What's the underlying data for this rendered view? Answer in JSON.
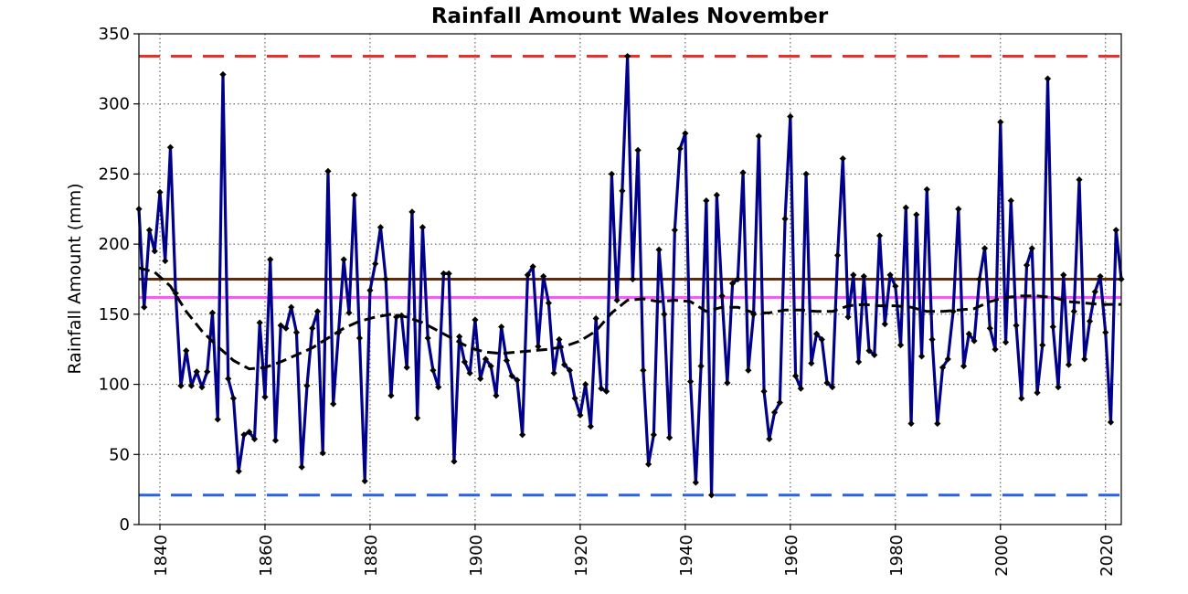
{
  "chart_data": {
    "type": "line",
    "title": "Rainfall Amount Wales November",
    "xlabel": "",
    "ylabel": "Rainfall Amount (mm)",
    "xlim": [
      1836,
      2023
    ],
    "ylim": [
      0,
      350
    ],
    "x_ticks": [
      1840,
      1860,
      1880,
      1900,
      1920,
      1940,
      1960,
      1980,
      2000,
      2020
    ],
    "y_ticks": [
      0,
      50,
      100,
      150,
      200,
      250,
      300,
      350
    ],
    "grid": true,
    "legend": "none",
    "series": [
      {
        "color": "#00008b",
        "marker": "diamond",
        "style": "solid",
        "points": [
          [
            1836,
            225
          ],
          [
            1837,
            155
          ],
          [
            1838,
            210
          ],
          [
            1839,
            195
          ],
          [
            1840,
            237
          ],
          [
            1841,
            188
          ],
          [
            1842,
            269
          ],
          [
            1843,
            165
          ],
          [
            1844,
            99
          ],
          [
            1845,
            124
          ],
          [
            1846,
            99
          ],
          [
            1847,
            109
          ],
          [
            1848,
            98
          ],
          [
            1849,
            109
          ],
          [
            1850,
            151
          ],
          [
            1851,
            75
          ],
          [
            1852,
            321
          ],
          [
            1853,
            104
          ],
          [
            1854,
            90
          ],
          [
            1855,
            38
          ],
          [
            1856,
            64
          ],
          [
            1857,
            66
          ],
          [
            1858,
            61
          ],
          [
            1859,
            144
          ],
          [
            1860,
            91
          ],
          [
            1861,
            189
          ],
          [
            1862,
            60
          ],
          [
            1863,
            142
          ],
          [
            1864,
            140
          ],
          [
            1865,
            155
          ],
          [
            1866,
            137
          ],
          [
            1867,
            41
          ],
          [
            1868,
            99
          ],
          [
            1869,
            140
          ],
          [
            1870,
            152
          ],
          [
            1871,
            51
          ],
          [
            1872,
            252
          ],
          [
            1873,
            86
          ],
          [
            1874,
            137
          ],
          [
            1875,
            189
          ],
          [
            1876,
            151
          ],
          [
            1877,
            235
          ],
          [
            1878,
            133
          ],
          [
            1879,
            31
          ],
          [
            1880,
            167
          ],
          [
            1881,
            186
          ],
          [
            1882,
            212
          ],
          [
            1883,
            175
          ],
          [
            1884,
            92
          ],
          [
            1885,
            148
          ],
          [
            1886,
            149
          ],
          [
            1887,
            112
          ],
          [
            1888,
            223
          ],
          [
            1889,
            76
          ],
          [
            1890,
            212
          ],
          [
            1891,
            133
          ],
          [
            1892,
            110
          ],
          [
            1893,
            98
          ],
          [
            1894,
            179
          ],
          [
            1895,
            179
          ],
          [
            1896,
            45
          ],
          [
            1897,
            134
          ],
          [
            1898,
            116
          ],
          [
            1899,
            108
          ],
          [
            1900,
            146
          ],
          [
            1901,
            104
          ],
          [
            1902,
            118
          ],
          [
            1903,
            113
          ],
          [
            1904,
            92
          ],
          [
            1905,
            141
          ],
          [
            1906,
            117
          ],
          [
            1907,
            106
          ],
          [
            1908,
            103
          ],
          [
            1909,
            64
          ],
          [
            1910,
            178
          ],
          [
            1911,
            184
          ],
          [
            1912,
            127
          ],
          [
            1913,
            177
          ],
          [
            1914,
            158
          ],
          [
            1915,
            108
          ],
          [
            1916,
            132
          ],
          [
            1917,
            114
          ],
          [
            1918,
            110
          ],
          [
            1919,
            90
          ],
          [
            1920,
            78
          ],
          [
            1921,
            100
          ],
          [
            1922,
            70
          ],
          [
            1923,
            147
          ],
          [
            1924,
            97
          ],
          [
            1925,
            95
          ],
          [
            1926,
            250
          ],
          [
            1927,
            160
          ],
          [
            1928,
            238
          ],
          [
            1929,
            334
          ],
          [
            1930,
            175
          ],
          [
            1931,
            267
          ],
          [
            1932,
            110
          ],
          [
            1933,
            43
          ],
          [
            1934,
            64
          ],
          [
            1935,
            196
          ],
          [
            1936,
            150
          ],
          [
            1937,
            62
          ],
          [
            1938,
            210
          ],
          [
            1939,
            268
          ],
          [
            1940,
            279
          ],
          [
            1941,
            102
          ],
          [
            1942,
            30
          ],
          [
            1943,
            113
          ],
          [
            1944,
            231
          ],
          [
            1945,
            21
          ],
          [
            1946,
            235
          ],
          [
            1947,
            163
          ],
          [
            1948,
            101
          ],
          [
            1949,
            172
          ],
          [
            1950,
            175
          ],
          [
            1951,
            251
          ],
          [
            1952,
            110
          ],
          [
            1953,
            150
          ],
          [
            1954,
            277
          ],
          [
            1955,
            95
          ],
          [
            1956,
            61
          ],
          [
            1957,
            80
          ],
          [
            1958,
            87
          ],
          [
            1959,
            218
          ],
          [
            1960,
            291
          ],
          [
            1961,
            106
          ],
          [
            1962,
            97
          ],
          [
            1963,
            250
          ],
          [
            1964,
            115
          ],
          [
            1965,
            136
          ],
          [
            1966,
            132
          ],
          [
            1967,
            101
          ],
          [
            1968,
            98
          ],
          [
            1969,
            192
          ],
          [
            1970,
            261
          ],
          [
            1971,
            148
          ],
          [
            1972,
            178
          ],
          [
            1973,
            116
          ],
          [
            1974,
            177
          ],
          [
            1975,
            124
          ],
          [
            1976,
            121
          ],
          [
            1977,
            206
          ],
          [
            1978,
            143
          ],
          [
            1979,
            178
          ],
          [
            1980,
            170
          ],
          [
            1981,
            128
          ],
          [
            1982,
            226
          ],
          [
            1983,
            72
          ],
          [
            1984,
            221
          ],
          [
            1985,
            120
          ],
          [
            1986,
            239
          ],
          [
            1987,
            132
          ],
          [
            1988,
            72
          ],
          [
            1989,
            112
          ],
          [
            1990,
            118
          ],
          [
            1991,
            152
          ],
          [
            1992,
            225
          ],
          [
            1993,
            113
          ],
          [
            1994,
            136
          ],
          [
            1995,
            131
          ],
          [
            1996,
            175
          ],
          [
            1997,
            197
          ],
          [
            1998,
            140
          ],
          [
            1999,
            125
          ],
          [
            2000,
            287
          ],
          [
            2001,
            130
          ],
          [
            2002,
            231
          ],
          [
            2003,
            142
          ],
          [
            2004,
            90
          ],
          [
            2005,
            185
          ],
          [
            2006,
            197
          ],
          [
            2007,
            94
          ],
          [
            2008,
            128
          ],
          [
            2009,
            318
          ],
          [
            2010,
            141
          ],
          [
            2011,
            98
          ],
          [
            2012,
            178
          ],
          [
            2013,
            114
          ],
          [
            2014,
            152
          ],
          [
            2015,
            246
          ],
          [
            2016,
            118
          ],
          [
            2017,
            145
          ],
          [
            2018,
            166
          ],
          [
            2019,
            177
          ],
          [
            2020,
            137
          ],
          [
            2021,
            73
          ],
          [
            2022,
            210
          ],
          [
            2023,
            175
          ]
        ]
      },
      {
        "color": "#000000",
        "marker": "none",
        "style": "dashed",
        "points": [
          [
            1836,
            183
          ],
          [
            1839,
            180
          ],
          [
            1842,
            170
          ],
          [
            1845,
            152
          ],
          [
            1848,
            138
          ],
          [
            1851,
            127
          ],
          [
            1854,
            117
          ],
          [
            1857,
            111
          ],
          [
            1860,
            112
          ],
          [
            1863,
            116
          ],
          [
            1866,
            121
          ],
          [
            1869,
            126
          ],
          [
            1872,
            133
          ],
          [
            1875,
            140
          ],
          [
            1878,
            145
          ],
          [
            1881,
            148
          ],
          [
            1884,
            150
          ],
          [
            1887,
            148
          ],
          [
            1890,
            144
          ],
          [
            1893,
            138
          ],
          [
            1896,
            132
          ],
          [
            1899,
            126
          ],
          [
            1902,
            123
          ],
          [
            1905,
            122
          ],
          [
            1908,
            123
          ],
          [
            1911,
            124
          ],
          [
            1914,
            125
          ],
          [
            1917,
            127
          ],
          [
            1920,
            131
          ],
          [
            1923,
            138
          ],
          [
            1926,
            151
          ],
          [
            1929,
            160
          ],
          [
            1932,
            161
          ],
          [
            1935,
            159
          ],
          [
            1938,
            160
          ],
          [
            1941,
            159
          ],
          [
            1944,
            152
          ],
          [
            1947,
            155
          ],
          [
            1950,
            155
          ],
          [
            1953,
            151
          ],
          [
            1956,
            151
          ],
          [
            1959,
            153
          ],
          [
            1962,
            153
          ],
          [
            1965,
            152
          ],
          [
            1968,
            152
          ],
          [
            1971,
            156
          ],
          [
            1974,
            157
          ],
          [
            1977,
            156
          ],
          [
            1980,
            156
          ],
          [
            1983,
            155
          ],
          [
            1986,
            152
          ],
          [
            1989,
            152
          ],
          [
            1992,
            153
          ],
          [
            1995,
            154
          ],
          [
            1998,
            159
          ],
          [
            2001,
            162
          ],
          [
            2004,
            163
          ],
          [
            2007,
            163
          ],
          [
            2010,
            162
          ],
          [
            2013,
            159
          ],
          [
            2016,
            158
          ],
          [
            2019,
            157
          ],
          [
            2023,
            157
          ]
        ]
      }
    ],
    "reference_lines": [
      {
        "value": 334,
        "color": "#e8302a",
        "style": "dashed"
      },
      {
        "value": 175,
        "color": "#5c2c0c",
        "style": "solid"
      },
      {
        "value": 162,
        "color": "#ff55ff",
        "style": "solid"
      },
      {
        "value": 21,
        "color": "#2b62e0",
        "style": "dashed"
      }
    ]
  }
}
